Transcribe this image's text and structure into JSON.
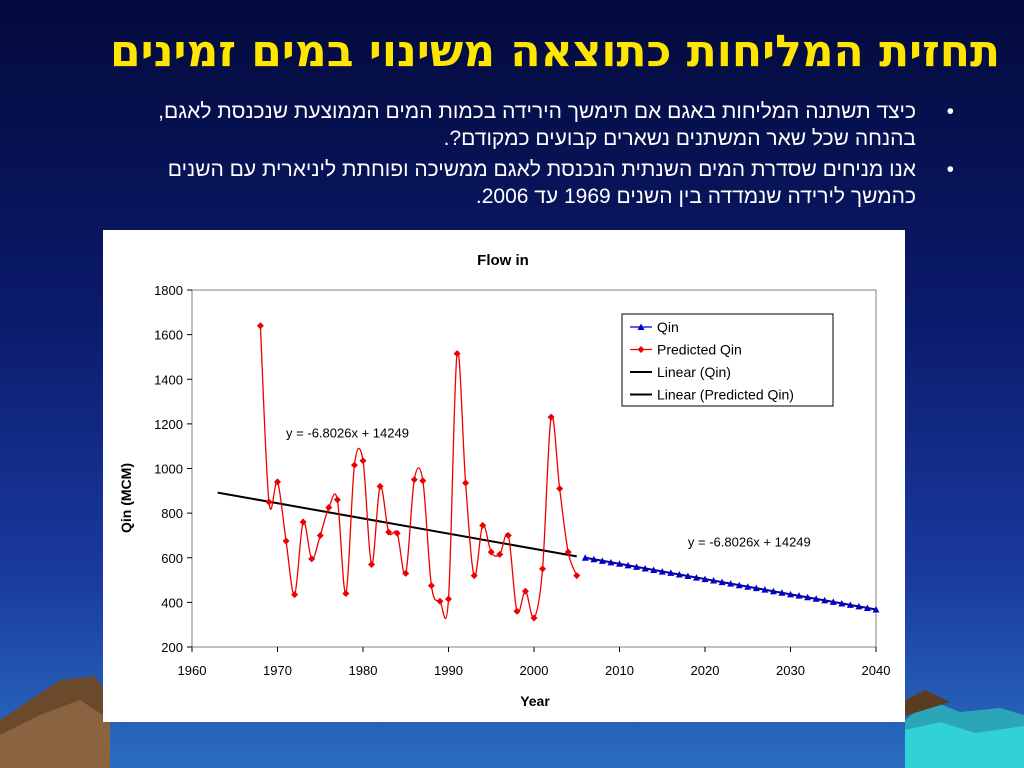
{
  "slide": {
    "title": "תחזית המליחות כתוצאה משינוי במים זמינים",
    "bullets": [
      "כיצד תשתנה המליחות באגם אם תימשך הירידה בכמות המים הממוצעת שנכנסת לאגם, בהנחה שכל שאר המשתנים נשארים קבועים כמקודם?.",
      "אנו מניחים שסדרת המים השנתית הנכנסת לאגם ממשיכה ופוחתת ליניארית עם השנים כהמשך לירידה שנמדדה בין השנים 1969 עד 2006."
    ]
  },
  "colors": {
    "title": "#ffe600",
    "qin": "#0000cc",
    "predicted": "#ee0000",
    "trend": "#000000"
  },
  "chart_data": {
    "type": "line",
    "title": "Flow in",
    "xlabel": "Year",
    "ylabel": "Qin (MCM)",
    "xlim": [
      1960,
      2040
    ],
    "ylim": [
      200,
      1800
    ],
    "xticks": [
      1960,
      1970,
      1980,
      1990,
      2000,
      2010,
      2020,
      2030,
      2040
    ],
    "yticks": [
      200,
      400,
      600,
      800,
      1000,
      1200,
      1400,
      1600,
      1800
    ],
    "grid": false,
    "legend_position": "top-right",
    "series": [
      {
        "name": "Qin",
        "marker": "triangle",
        "x": [
          2006,
          2007,
          2008,
          2009,
          2010,
          2011,
          2012,
          2013,
          2014,
          2015,
          2016,
          2017,
          2018,
          2019,
          2020,
          2021,
          2022,
          2023,
          2024,
          2025,
          2026,
          2027,
          2028,
          2029,
          2030,
          2031,
          2032,
          2033,
          2034,
          2035,
          2036,
          2037,
          2038,
          2039,
          2040
        ],
        "y": [
          600,
          593,
          586,
          579,
          573,
          566,
          559,
          552,
          545,
          538,
          532,
          525,
          518,
          511,
          504,
          498,
          491,
          484,
          477,
          470,
          464,
          457,
          450,
          443,
          436,
          430,
          423,
          416,
          409,
          402,
          395,
          389,
          382,
          375,
          368
        ]
      },
      {
        "name": "Predicted Qin",
        "marker": "diamond",
        "x": [
          1968,
          1969,
          1970,
          1971,
          1972,
          1973,
          1974,
          1975,
          1976,
          1977,
          1978,
          1979,
          1980,
          1981,
          1982,
          1983,
          1984,
          1985,
          1986,
          1987,
          1988,
          1989,
          1990,
          1991,
          1992,
          1993,
          1994,
          1995,
          1996,
          1997,
          1998,
          1999,
          2000,
          2001,
          2002,
          2003,
          2004,
          2005
        ],
        "y": [
          1640,
          850,
          940,
          675,
          435,
          760,
          595,
          700,
          825,
          860,
          440,
          1015,
          1035,
          570,
          920,
          715,
          710,
          530,
          950,
          945,
          475,
          405,
          415,
          1515,
          935,
          520,
          745,
          625,
          615,
          700,
          360,
          450,
          330,
          550,
          1230,
          910,
          625,
          520
        ]
      },
      {
        "name": "Linear (Qin)",
        "type": "trendline",
        "x": [
          2006,
          2040
        ],
        "y": [
          600,
          368
        ]
      },
      {
        "name": "Linear (Predicted Qin)",
        "type": "trendline",
        "x": [
          1963,
          2005
        ],
        "y": [
          892,
          606
        ]
      }
    ],
    "annotations": [
      {
        "text": "y = -6.8026x + 14249",
        "x": 1971,
        "y": 1140
      },
      {
        "text": "y = -6.8026x + 14249",
        "x": 2018,
        "y": 650
      }
    ]
  }
}
